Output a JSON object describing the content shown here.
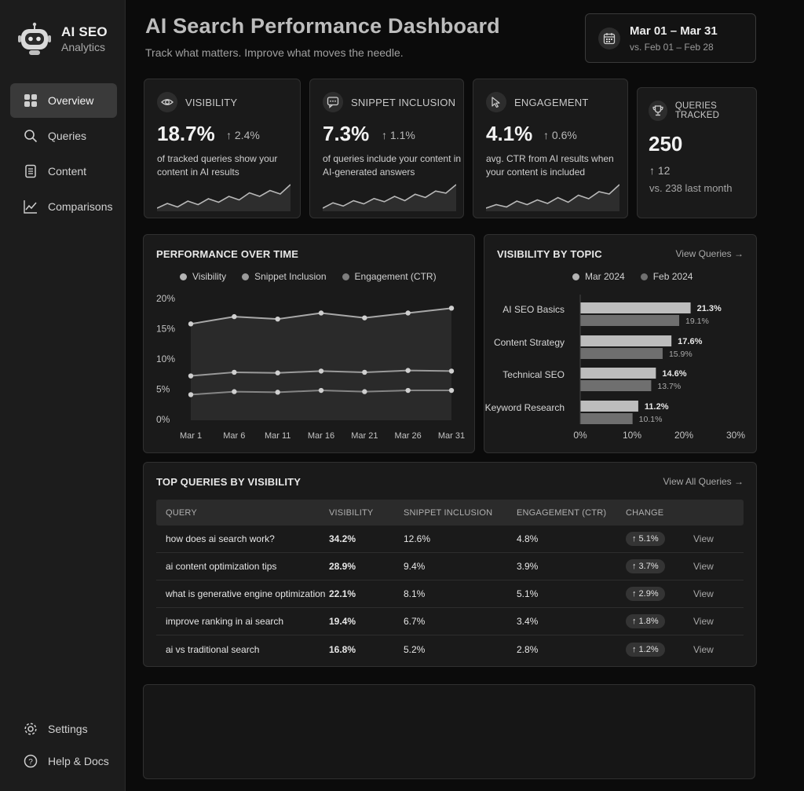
{
  "brand": {
    "name": "AI SEO",
    "subtitle": "Analytics"
  },
  "sidebar": {
    "items": [
      {
        "label": "Overview",
        "icon": "grid-icon",
        "active": true
      },
      {
        "label": "Queries",
        "icon": "search-icon"
      },
      {
        "label": "Content",
        "icon": "document-icon"
      },
      {
        "label": "Comparisons",
        "icon": "line-chart-icon"
      }
    ],
    "bottom": [
      {
        "label": "Settings",
        "icon": "gear-icon"
      },
      {
        "label": "Help & Docs",
        "icon": "help-circle-icon"
      }
    ]
  },
  "header": {
    "title": "AI Search Performance Dashboard",
    "subtitle": "Track what matters. Improve what moves the needle."
  },
  "date_range": {
    "main": "Mar 01 – Mar 31",
    "compare": "vs. Feb 01 – Feb 28"
  },
  "kpis": [
    {
      "title": "VISIBILITY",
      "icon": "eye-icon",
      "value": "18.7%",
      "delta": "↑ 2.4%",
      "desc": "of tracked queries show your content in AI results",
      "spark": [
        10,
        14,
        11,
        16,
        13,
        18,
        15,
        20,
        17,
        23,
        20,
        25,
        22,
        30
      ]
    },
    {
      "title": "SNIPPET INCLUSION",
      "icon": "chat-icon",
      "value": "7.3%",
      "delta": "↑ 1.1%",
      "desc": "of queries include your content in AI-generated answers",
      "spark": [
        8,
        13,
        10,
        15,
        12,
        17,
        14,
        19,
        15,
        21,
        18,
        24,
        22,
        30
      ]
    },
    {
      "title": "ENGAGEMENT",
      "icon": "cursor-icon",
      "value": "4.1%",
      "delta": "↑ 0.6%",
      "desc": "avg. CTR from AI results when your content is included",
      "spark": [
        9,
        12,
        10,
        15,
        12,
        16,
        13,
        18,
        14,
        20,
        17,
        23,
        21,
        29
      ]
    }
  ],
  "queries_tracked": {
    "title": "QUERIES TRACKED",
    "icon": "trophy-icon",
    "value": "250",
    "delta": "↑ 12",
    "compare": "vs. 238 last month"
  },
  "performance": {
    "title": "PERFORMANCE OVER TIME",
    "chart_data": {
      "type": "line",
      "x": [
        "Mar 1",
        "Mar 6",
        "Mar 11",
        "Mar 16",
        "Mar 21",
        "Mar 26",
        "Mar 31"
      ],
      "ylim": [
        0,
        20
      ],
      "yticks": [
        "0%",
        "5%",
        "10%",
        "15%",
        "20%"
      ],
      "series": [
        {
          "name": "Visibility",
          "color": "#9e9e9e",
          "values": [
            15.8,
            17.0,
            16.6,
            17.6,
            16.8,
            17.6,
            18.4
          ]
        },
        {
          "name": "Snippet Inclusion",
          "color": "#8f8f8f",
          "values": [
            7.2,
            7.8,
            7.7,
            8.0,
            7.8,
            8.1,
            8.0
          ]
        },
        {
          "name": "Engagement (CTR)",
          "color": "#7a7a7a",
          "values": [
            4.1,
            4.6,
            4.5,
            4.8,
            4.6,
            4.8,
            4.8
          ]
        }
      ]
    }
  },
  "topics": {
    "title": "VISIBILITY BY TOPIC",
    "link": "View Queries →",
    "chart_data": {
      "type": "bar",
      "orientation": "horizontal",
      "categories": [
        "AI SEO Basics",
        "Content Strategy",
        "Technical SEO",
        "Keyword Research"
      ],
      "xlim": [
        0,
        30
      ],
      "xticks": [
        "0%",
        "10%",
        "20%",
        "30%"
      ],
      "series": [
        {
          "name": "Mar 2024",
          "color": "#bdbdbd",
          "values": [
            21.3,
            17.6,
            14.6,
            11.2
          ],
          "labels": [
            "21.3%",
            "17.6%",
            "14.6%",
            "11.2%"
          ]
        },
        {
          "name": "Feb 2024",
          "color": "#6f6f6f",
          "values": [
            19.1,
            15.9,
            13.7,
            10.1
          ],
          "labels": [
            "19.1%",
            "15.9%",
            "13.7%",
            "10.1%"
          ]
        }
      ]
    }
  },
  "top_queries": {
    "title": "TOP QUERIES BY VISIBILITY",
    "link": "View All Queries →",
    "columns": [
      "QUERY",
      "VISIBILITY",
      "SNIPPET INCLUSION",
      "ENGAGEMENT (CTR)",
      "CHANGE"
    ],
    "view_label": "View",
    "rows": [
      {
        "query": "how does ai search work?",
        "visibility": "34.2%",
        "snippet": "12.6%",
        "engagement": "4.8%",
        "change": "↑ 5.1%"
      },
      {
        "query": "ai content optimization tips",
        "visibility": "28.9%",
        "snippet": "9.4%",
        "engagement": "3.9%",
        "change": "↑ 3.7%"
      },
      {
        "query": "what is generative engine optimization",
        "visibility": "22.1%",
        "snippet": "8.1%",
        "engagement": "5.1%",
        "change": "↑ 2.9%"
      },
      {
        "query": "improve ranking in ai search",
        "visibility": "19.4%",
        "snippet": "6.7%",
        "engagement": "3.4%",
        "change": "↑ 1.8%"
      },
      {
        "query": "ai vs traditional search",
        "visibility": "16.8%",
        "snippet": "5.2%",
        "engagement": "2.8%",
        "change": "↑ 1.2%"
      }
    ]
  }
}
